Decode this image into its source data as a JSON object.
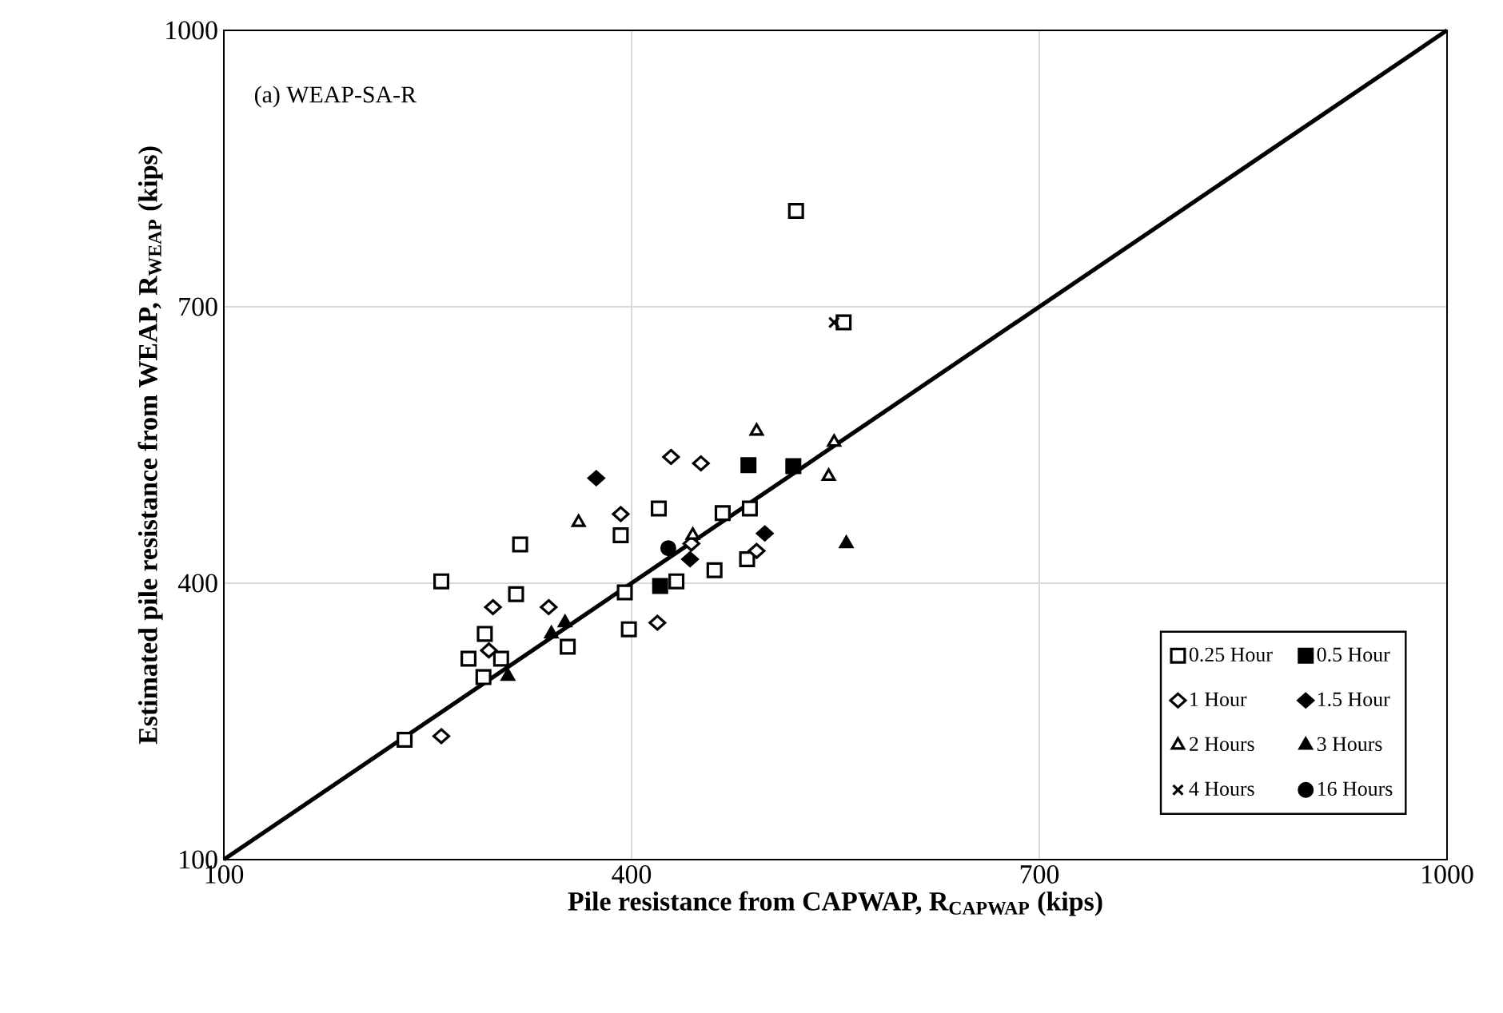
{
  "chart_data": {
    "type": "scatter",
    "xlabel": "Pile resistance from CAPWAP, R$_{CAPWAP}$ (kips)",
    "ylabel": "Estimated pile resistance from WEAP, R$_{WEAP}$ (kips)",
    "annotations": [
      "(a) WEAP-SA-R"
    ],
    "xlim": [
      100,
      1000
    ],
    "ylim": [
      100,
      1000
    ],
    "xticks": [
      100,
      400,
      700,
      1000
    ],
    "yticks": [
      100,
      400,
      700,
      1000
    ],
    "grid": true,
    "legend": "right",
    "series": [
      {
        "name": "0.25 Hour",
        "color": "#ffffff",
        "marker": "square",
        "x": [
          233,
          260,
          318,
          315,
          292,
          280,
          304,
          291,
          353,
          392,
          420,
          467,
          487,
          395,
          398,
          433,
          461,
          485,
          521,
          556
        ],
        "values": [
          230,
          402,
          442,
          388,
          345,
          318,
          318,
          298,
          331,
          452,
          481,
          476,
          481,
          390,
          350,
          402,
          414,
          426,
          804,
          683
        ]
      },
      {
        "name": "0.5 Hour",
        "color": "#000000",
        "marker": "square",
        "x": [
          486,
          519,
          421
        ],
        "values": [
          528,
          527,
          397
        ]
      },
      {
        "name": "1 Hour",
        "color": "#ffffff",
        "marker": "diamond",
        "x": [
          260,
          298,
          339,
          295,
          429,
          451,
          392,
          419,
          492,
          444
        ],
        "values": [
          234,
          374,
          374,
          327,
          537,
          530,
          475,
          357,
          435,
          443
        ]
      },
      {
        "name": "1.5 Hour",
        "color": "#000000",
        "marker": "diamond",
        "x": [
          374,
          498,
          443
        ],
        "values": [
          514,
          454,
          426
        ]
      },
      {
        "name": "2 Hours",
        "color": "#ffffff",
        "marker": "triangle",
        "x": [
          361,
          492,
          549,
          545,
          445
        ],
        "values": [
          466,
          565,
          553,
          516,
          452
        ]
      },
      {
        "name": "3 Hours",
        "color": "#000000",
        "marker": "triangle",
        "x": [
          309,
          341,
          351,
          558
        ],
        "values": [
          299,
          345,
          357,
          443
        ]
      },
      {
        "name": "4 Hours",
        "color": "#000000",
        "marker": "cross",
        "x": [
          549
        ],
        "values": [
          683
        ]
      },
      {
        "name": "16 Hours",
        "color": "#000000",
        "marker": "circle",
        "x": [
          427
        ],
        "values": [
          438
        ]
      },
      {
        "type": "line",
        "color": "#000000",
        "marker": "none",
        "x": [
          100,
          1000
        ],
        "values": [
          100,
          1000
        ]
      }
    ]
  }
}
